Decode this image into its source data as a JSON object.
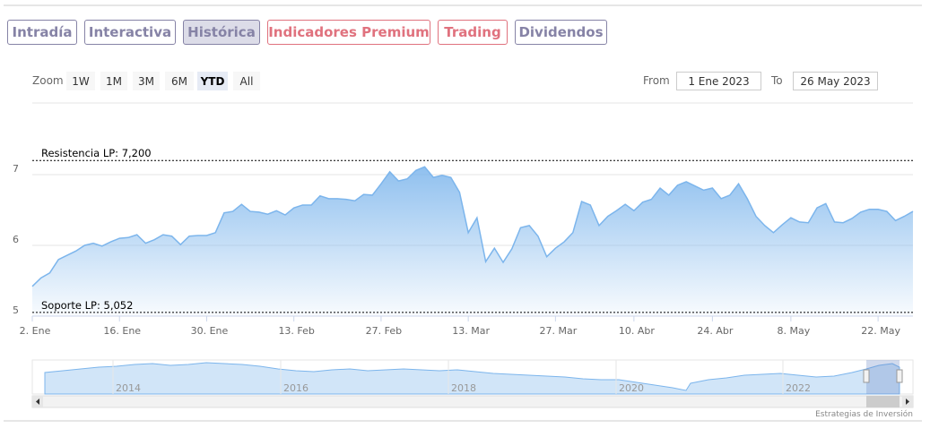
{
  "tabs": [
    {
      "label": "Intradía",
      "color": "#8683a6",
      "active": false
    },
    {
      "label": "Interactiva",
      "color": "#8683a6",
      "active": false
    },
    {
      "label": "Histórica",
      "color": "#8683a6",
      "active": true
    },
    {
      "label": "Indicadores Premium",
      "color": "#e0727e",
      "active": false
    },
    {
      "label": "Trading",
      "color": "#e0727e",
      "active": false
    },
    {
      "label": "Dividendos",
      "color": "#8683a6",
      "active": false
    }
  ],
  "zoom": {
    "label": "Zoom",
    "buttons": [
      {
        "label": "1W",
        "active": false
      },
      {
        "label": "1M",
        "active": false
      },
      {
        "label": "3M",
        "active": false
      },
      {
        "label": "6M",
        "active": false
      },
      {
        "label": "YTD",
        "active": true
      },
      {
        "label": "All",
        "active": false
      }
    ]
  },
  "range": {
    "from_label": "From",
    "from": "1 Ene 2023",
    "to_label": "To",
    "to": "26 May 2023"
  },
  "chart_data": {
    "type": "area",
    "color": "#7cb5ec",
    "categories": [
      "2. Ene",
      null,
      null,
      null,
      null,
      null,
      null,
      null,
      null,
      null,
      "16. Ene",
      null,
      null,
      null,
      null,
      null,
      null,
      null,
      null,
      null,
      "30. Ene",
      null,
      null,
      null,
      null,
      null,
      null,
      null,
      null,
      null,
      "13. Feb",
      null,
      null,
      null,
      null,
      null,
      null,
      null,
      null,
      null,
      "27. Feb",
      null,
      null,
      null,
      null,
      null,
      null,
      null,
      null,
      null,
      "13. Mar",
      null,
      null,
      null,
      null,
      null,
      null,
      null,
      null,
      null,
      "27. Mar",
      null,
      null,
      null,
      null,
      null,
      null,
      null,
      null,
      "10. Abr",
      null,
      null,
      null,
      null,
      null,
      null,
      null,
      null,
      "24. Abr",
      null,
      null,
      null,
      null,
      null,
      null,
      null,
      null,
      "8. May",
      null,
      null,
      null,
      null,
      null,
      null,
      null,
      null,
      null,
      "22. May",
      null,
      null,
      null,
      null
    ],
    "values": [
      5.42,
      5.54,
      5.61,
      5.8,
      5.86,
      5.92,
      6.0,
      6.03,
      5.99,
      6.05,
      6.1,
      6.11,
      6.15,
      6.03,
      6.08,
      6.15,
      6.13,
      6.01,
      6.13,
      6.14,
      6.14,
      6.18,
      6.46,
      6.48,
      6.58,
      6.48,
      6.47,
      6.44,
      6.49,
      6.43,
      6.53,
      6.57,
      6.57,
      6.7,
      6.66,
      6.66,
      6.65,
      6.63,
      6.72,
      6.71,
      6.87,
      7.04,
      6.91,
      6.94,
      7.06,
      7.11,
      6.96,
      6.99,
      6.96,
      6.75,
      6.18,
      6.39,
      5.77,
      5.96,
      5.76,
      5.95,
      6.25,
      6.28,
      6.13,
      5.84,
      5.96,
      6.05,
      6.18,
      6.62,
      6.57,
      6.28,
      6.41,
      6.49,
      6.58,
      6.49,
      6.61,
      6.65,
      6.81,
      6.71,
      6.85,
      6.9,
      6.84,
      6.78,
      6.81,
      6.66,
      6.71,
      6.87,
      6.66,
      6.41,
      6.28,
      6.18,
      6.29,
      6.39,
      6.33,
      6.32,
      6.53,
      6.59,
      6.33,
      6.32,
      6.38,
      6.47,
      6.51,
      6.51,
      6.48,
      6.35,
      6.41,
      6.48
    ],
    "ylim": [
      5,
      8
    ],
    "yticks": [
      5,
      6,
      7
    ],
    "grid": true,
    "plot_lines": [
      {
        "label": "Resistencia LP: 7,200",
        "value": 7.2
      },
      {
        "label": "Soporte LP: 5,052",
        "value": 5.052
      }
    ]
  },
  "navigator": {
    "labels": [
      "2014",
      "2016",
      "2018",
      "2020",
      "2022"
    ]
  },
  "credit": "Estrategias de Inversión"
}
